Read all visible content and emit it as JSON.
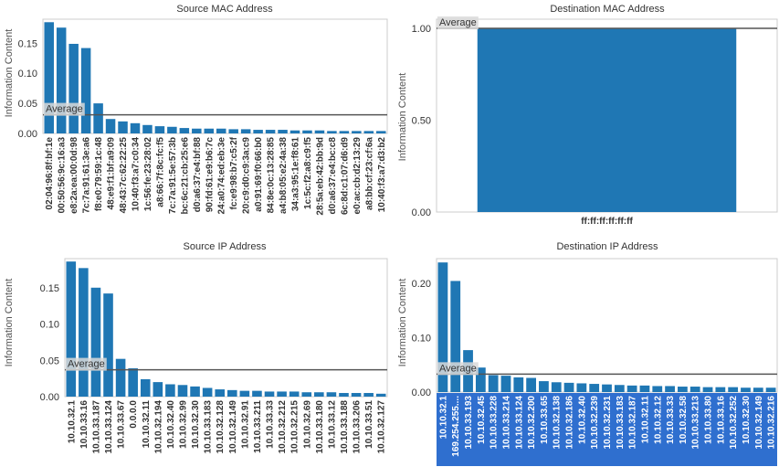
{
  "colors": {
    "bar": "#1f77b4",
    "average_line": "#555555",
    "axis": "#cccccc",
    "selection": "#2f6fcf",
    "average_label_bg": "#d9d9d9"
  },
  "chart_data": [
    {
      "type": "bar",
      "title": "Source MAC Address",
      "ylabel": "Information Content",
      "ylim": [
        0,
        0.19
      ],
      "yticks": [
        {
          "v": 0,
          "label": "0.00"
        },
        {
          "v": 0.05,
          "label": "0.05"
        },
        {
          "v": 0.1,
          "label": "0.10"
        },
        {
          "v": 0.15,
          "label": "0.15"
        }
      ],
      "average": {
        "value": 0.031,
        "label": "Average"
      },
      "categories": [
        "02:04:96:8f:bf:1e",
        "00:50:56:9c:16:a3",
        "e8:2a:ea:00:0d:98",
        "7c:7a:91:61:3e:a6",
        "f8:e0:79:59:1c:48",
        "48:e9:f1:bf:a9:09",
        "48:43:7c:62:22:25",
        "10:40:f3:a7:c0:34",
        "1c:56:fe:23:28:02",
        "a8:66:7f:8c:fc:f5",
        "7c:7a:91:5e:57:3b",
        "bc:6c:21:cb:25:e6",
        "d0:a6:37:e4:bf:88",
        "90:fd:61:e9:b6:7c",
        "24:a0:74:ed:eb:3e",
        "fc:e9:98:b7:c5:2f",
        "20:c9:d0:c9:3a:c9",
        "a0:91:69:f0:66:b0",
        "84:8e:0c:13:28:85",
        "a4:b8:05:e2:4a:38",
        "34:a3:95:1e:f8:61",
        "1c:5c:f2:a8:c9:f5",
        "28:5a:eb:42:bb:9d",
        "d0:a6:37:e4:bc:c8",
        "6c:8d:c1:07:d6:d9",
        "e0:ac:cb:d2:13:29",
        "a8:bb:cf:23:cf:6a",
        "10:40:f3:a7:d3:b2"
      ],
      "values": [
        0.185,
        0.176,
        0.149,
        0.142,
        0.05,
        0.024,
        0.02,
        0.017,
        0.014,
        0.012,
        0.011,
        0.009,
        0.008,
        0.008,
        0.008,
        0.007,
        0.007,
        0.006,
        0.006,
        0.006,
        0.005,
        0.005,
        0.005,
        0.004,
        0.004,
        0.004,
        0.004,
        0.004
      ]
    },
    {
      "type": "bar",
      "title": "Destination MAC Address",
      "ylabel": "Information Content",
      "ylim": [
        0,
        1.05
      ],
      "yticks": [
        {
          "v": 0,
          "label": "0.00"
        },
        {
          "v": 0.5,
          "label": "0.50"
        },
        {
          "v": 1.0,
          "label": "1.00"
        }
      ],
      "average": {
        "value": 1.0,
        "label": "Average"
      },
      "categories": [
        "ff:ff:ff:ff:ff:ff"
      ],
      "values": [
        1.0
      ]
    },
    {
      "type": "bar",
      "title": "Source IP Address",
      "ylabel": "Information Content",
      "ylim": [
        0,
        0.19
      ],
      "yticks": [
        {
          "v": 0,
          "label": "0.00"
        },
        {
          "v": 0.05,
          "label": "0.05"
        },
        {
          "v": 0.1,
          "label": "0.10"
        },
        {
          "v": 0.15,
          "label": "0.15"
        }
      ],
      "average": {
        "value": 0.037,
        "label": "Average"
      },
      "categories": [
        "10.10.32.1",
        "10.10.33.16",
        "10.10.33.187",
        "10.10.33.124",
        "10.10.33.67",
        "0.0.0.0",
        "10.10.32.11",
        "10.10.32.194",
        "10.10.32.40",
        "10.10.32.99",
        "10.10.32.30",
        "10.10.33.183",
        "10.10.32.128",
        "10.10.32.149",
        "10.10.32.91",
        "10.10.33.211",
        "10.10.33.33",
        "10.10.32.212",
        "10.10.32.215",
        "10.10.32.69",
        "10.10.33.180",
        "10.10.33.12",
        "10.10.33.188",
        "10.10.33.206",
        "10.10.33.51",
        "10.10.32.127"
      ],
      "values": [
        0.186,
        0.177,
        0.15,
        0.142,
        0.052,
        0.039,
        0.024,
        0.02,
        0.017,
        0.016,
        0.014,
        0.012,
        0.01,
        0.009,
        0.008,
        0.008,
        0.007,
        0.007,
        0.007,
        0.006,
        0.006,
        0.006,
        0.005,
        0.005,
        0.005,
        0.004
      ]
    },
    {
      "type": "bar",
      "title": "Destination IP Address",
      "ylabel": "Information Content",
      "ylim": [
        0,
        0.245
      ],
      "yticks": [
        {
          "v": 0,
          "label": "0.00"
        },
        {
          "v": 0.1,
          "label": "0.10"
        },
        {
          "v": 0.2,
          "label": "0.20"
        }
      ],
      "average": {
        "value": 0.033,
        "label": "Average"
      },
      "selected": true,
      "categories": [
        "10.10.32.1",
        "169.254.255....",
        "10.10.33.193",
        "10.10.32.45",
        "10.10.33.228",
        "10.10.33.214",
        "10.10.33.124",
        "10.10.32.200",
        "10.10.33.65",
        "10.10.32.138",
        "10.10.32.186",
        "10.10.32.40",
        "10.10.32.239",
        "10.10.32.231",
        "10.10.33.183",
        "10.10.32.187",
        "10.10.32.11",
        "10.10.32.12",
        "10.10.33.33",
        "10.10.32.58",
        "10.10.33.213",
        "10.10.33.80",
        "10.10.33.16",
        "10.10.32.252",
        "10.10.32.30",
        "10.10.32.149",
        "10.10.32.216"
      ],
      "values": [
        0.238,
        0.204,
        0.077,
        0.045,
        0.031,
        0.03,
        0.027,
        0.026,
        0.02,
        0.018,
        0.017,
        0.016,
        0.015,
        0.014,
        0.013,
        0.012,
        0.012,
        0.011,
        0.011,
        0.01,
        0.01,
        0.009,
        0.009,
        0.009,
        0.008,
        0.008,
        0.008
      ]
    }
  ]
}
